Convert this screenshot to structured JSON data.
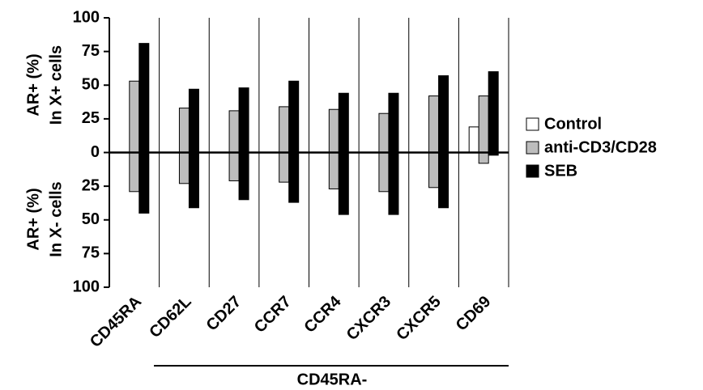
{
  "chart_data": {
    "type": "bar",
    "upper_axis_label": [
      "AR+ (%)",
      "In X+ cells"
    ],
    "lower_axis_label": [
      "AR+ (%)",
      "In X- cells"
    ],
    "categories": [
      "CD45RA",
      "CD62L",
      "CD27",
      "CCR7",
      "CCR4",
      "CXCR3",
      "CXCR5",
      "CD69"
    ],
    "group_label": "CD45RA-",
    "series": [
      {
        "name": "Control",
        "color": "#ffffff",
        "values": [
          0,
          0,
          0,
          0,
          0,
          0,
          0,
          19
        ],
        "lower_values": [
          0,
          0,
          0,
          0,
          0,
          0,
          0,
          0
        ]
      },
      {
        "name": "anti-CD3/CD28",
        "color": "#bdbdbd",
        "values": [
          53,
          33,
          31,
          34,
          32,
          29,
          42,
          42
        ],
        "lower_values": [
          -29,
          -23,
          -21,
          -22,
          -27,
          -29,
          -26,
          -8
        ]
      },
      {
        "name": "SEB",
        "color": "#000000",
        "values": [
          81,
          47,
          48,
          53,
          44,
          44,
          57,
          60
        ],
        "lower_values": [
          -45,
          -41,
          -35,
          -37,
          -46,
          -46,
          -41,
          -2
        ]
      }
    ],
    "ylim": [
      -100,
      100
    ],
    "yticks": [
      {
        "value": -100,
        "label": "100"
      },
      {
        "value": -75,
        "label": "75"
      },
      {
        "value": -50,
        "label": "50"
      },
      {
        "value": -25,
        "label": "25"
      },
      0,
      25,
      50,
      75,
      100
    ]
  }
}
